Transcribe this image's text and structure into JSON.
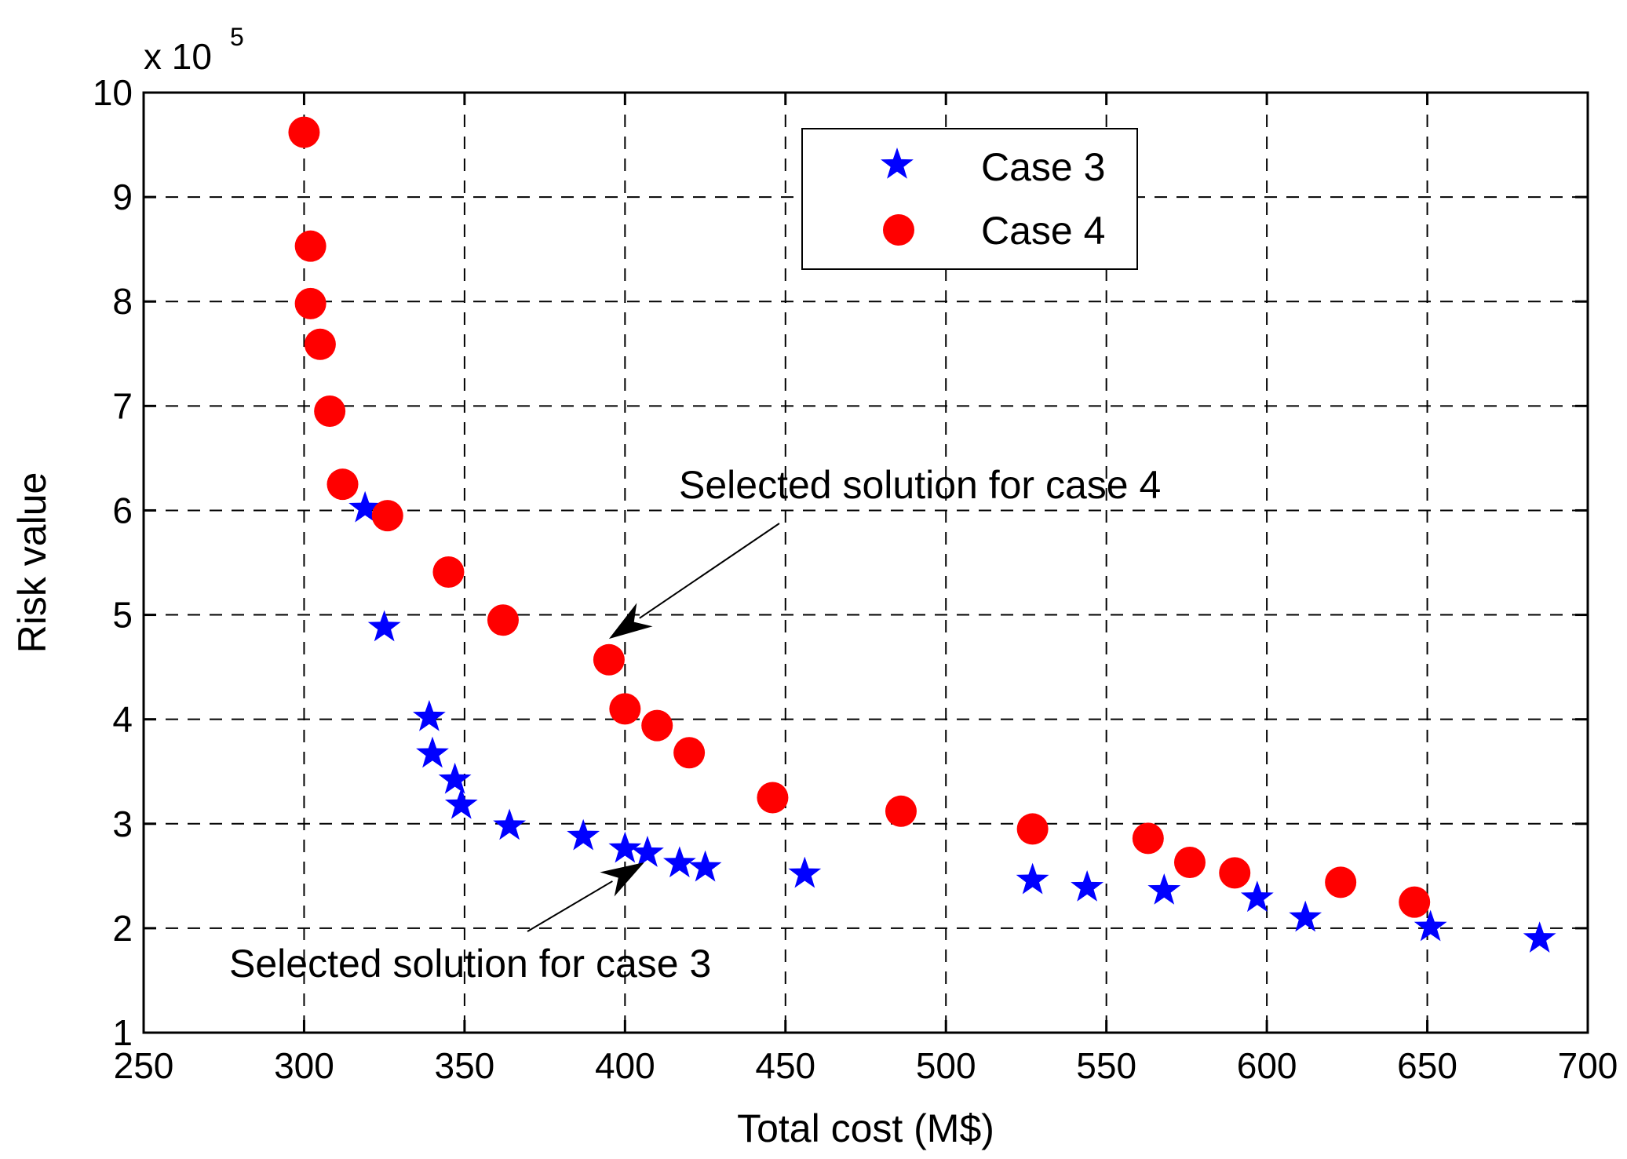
{
  "chart_data": {
    "type": "scatter",
    "title": "",
    "xlabel": "Total cost (M$)",
    "ylabel": "Risk value",
    "xlim": [
      250,
      700
    ],
    "ylim": [
      1,
      10
    ],
    "y_multiplier_label": "x 10",
    "y_multiplier_exponent": "5",
    "grid": true,
    "legend_position": "top-right",
    "x_ticks": [
      "250",
      "300",
      "350",
      "400",
      "450",
      "500",
      "550",
      "600",
      "650",
      "700"
    ],
    "y_ticks": [
      "1",
      "2",
      "3",
      "4",
      "5",
      "6",
      "7",
      "8",
      "9",
      "10"
    ],
    "series": [
      {
        "name": "Case 3",
        "marker": "star",
        "color": "#0000ff",
        "points": [
          [
            319,
            6.02
          ],
          [
            325,
            4.88
          ],
          [
            339,
            4.02
          ],
          [
            340,
            3.67
          ],
          [
            347,
            3.42
          ],
          [
            349,
            3.18
          ],
          [
            364,
            2.98
          ],
          [
            387,
            2.88
          ],
          [
            400,
            2.76
          ],
          [
            407,
            2.72
          ],
          [
            417,
            2.62
          ],
          [
            425,
            2.58
          ],
          [
            456,
            2.52
          ],
          [
            527,
            2.46
          ],
          [
            544,
            2.39
          ],
          [
            568,
            2.36
          ],
          [
            597,
            2.29
          ],
          [
            612,
            2.1
          ],
          [
            651,
            2.01
          ],
          [
            685,
            1.9
          ]
        ]
      },
      {
        "name": "Case 4",
        "marker": "circle",
        "color": "#ff0000",
        "points": [
          [
            300,
            9.62
          ],
          [
            302,
            8.53
          ],
          [
            302,
            7.98
          ],
          [
            305,
            7.59
          ],
          [
            308,
            6.95
          ],
          [
            312,
            6.25
          ],
          [
            326,
            5.95
          ],
          [
            345,
            5.41
          ],
          [
            362,
            4.95
          ],
          [
            395,
            4.57
          ],
          [
            400,
            4.1
          ],
          [
            410,
            3.94
          ],
          [
            420,
            3.68
          ],
          [
            446,
            3.25
          ],
          [
            486,
            3.12
          ],
          [
            527,
            2.95
          ],
          [
            563,
            2.86
          ],
          [
            576,
            2.63
          ],
          [
            590,
            2.53
          ],
          [
            623,
            2.44
          ],
          [
            646,
            2.25
          ]
        ]
      }
    ],
    "annotations": [
      {
        "text": "Selected solution for case 4",
        "points_to": [
          395,
          4.77
        ]
      },
      {
        "text": "Selected solution for case 3",
        "points_to": [
          406,
          2.63
        ]
      }
    ]
  }
}
